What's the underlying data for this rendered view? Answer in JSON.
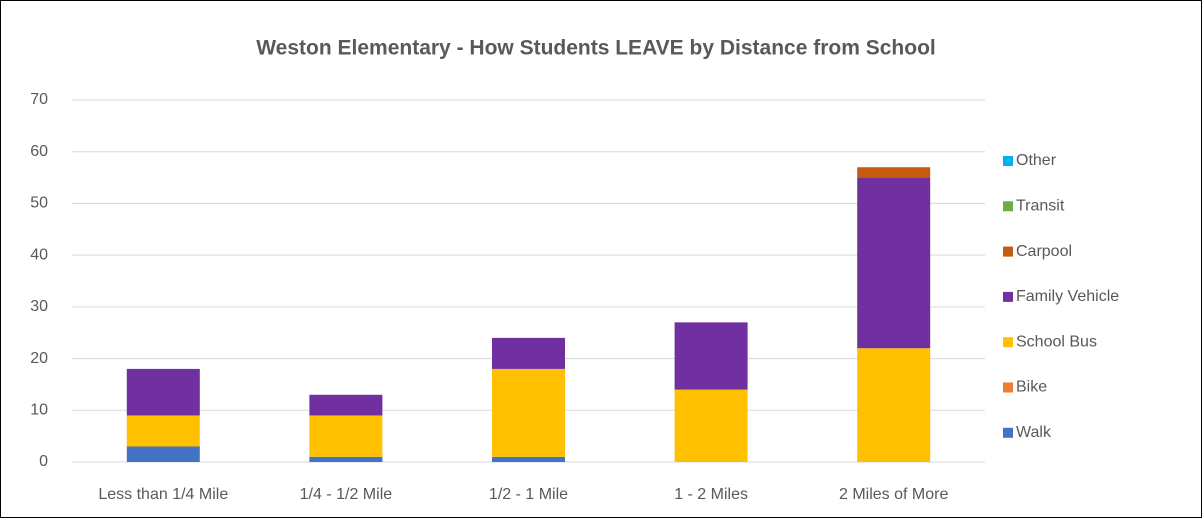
{
  "chart_data": {
    "type": "stacked_bar",
    "title": "Weston Elementary - How Students LEAVE by Distance from School",
    "categories": [
      "Less than 1/4 Mile",
      "1/4 - 1/2 Mile",
      "1/2 - 1 Mile",
      "1 - 2 Miles",
      "2 Miles of More"
    ],
    "series": [
      {
        "name": "Walk",
        "color": "#4472c4",
        "values": [
          3,
          1,
          1,
          0,
          0
        ]
      },
      {
        "name": "Bike",
        "color": "#ed7d31",
        "values": [
          0,
          0,
          0,
          0,
          0
        ]
      },
      {
        "name": "School Bus",
        "color": "#ffc000",
        "values": [
          6,
          8,
          17,
          14,
          22
        ]
      },
      {
        "name": "Family Vehicle",
        "color": "#7030a0",
        "values": [
          9,
          4,
          6,
          13,
          33
        ]
      },
      {
        "name": "Carpool",
        "color": "#c55a11",
        "values": [
          0,
          0,
          0,
          0,
          2
        ]
      },
      {
        "name": "Transit",
        "color": "#70ad47",
        "values": [
          0,
          0,
          0,
          0,
          0
        ]
      },
      {
        "name": "Other",
        "color": "#00b0f0",
        "values": [
          0,
          0,
          0,
          0,
          0
        ]
      }
    ],
    "ylim": [
      0,
      70
    ],
    "yticks": [
      0,
      10,
      20,
      30,
      40,
      50,
      60,
      70
    ],
    "grid": true,
    "legend": "right"
  }
}
